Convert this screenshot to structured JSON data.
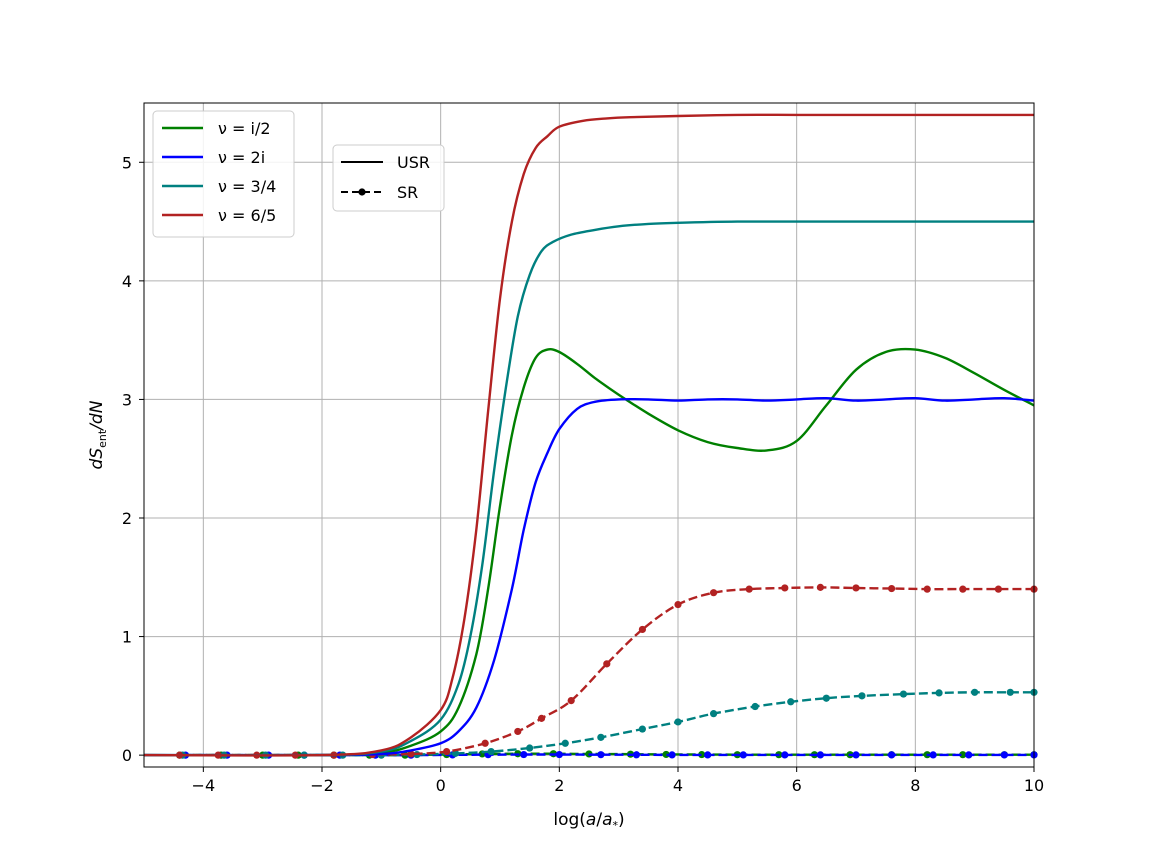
{
  "chart_data": {
    "type": "line",
    "title": "",
    "xlabel_main": "log(",
    "xlabel_var1": "a",
    "xlabel_slash": "/",
    "xlabel_var2": "a",
    "xlabel_sub": "*",
    "xlabel_close": ")",
    "ylabel_d1": "dS",
    "ylabel_sub": "ent",
    "ylabel_rest": "/dN",
    "xlim": [
      -5,
      10
    ],
    "ylim": [
      -0.1,
      5.5
    ],
    "xticks": [
      -4,
      -2,
      0,
      2,
      4,
      6,
      8,
      10
    ],
    "yticks": [
      0,
      1,
      2,
      3,
      4,
      5
    ],
    "xtick_labels": [
      "−4",
      "−2",
      "0",
      "2",
      "4",
      "6",
      "8",
      "10"
    ],
    "ytick_labels": [
      "0",
      "1",
      "2",
      "3",
      "4",
      "5"
    ],
    "grid": true,
    "legend_nu": {
      "placement": "top-left",
      "entries": [
        {
          "label": "ν = i/2",
          "color": "#008000"
        },
        {
          "label": "ν = 2i",
          "color": "#0000ff"
        },
        {
          "label": "ν = 3/4",
          "color": "#008080"
        },
        {
          "label": "ν = 6/5",
          "color": "#b22222"
        }
      ]
    },
    "legend_style": {
      "placement": "upper-left-inner",
      "entries": [
        {
          "label": "USR",
          "style": "solid"
        },
        {
          "label": "SR",
          "style": "dashed-dot"
        }
      ]
    },
    "series": [
      {
        "id": "usr-i2",
        "color": "#008000",
        "style": "solid",
        "x": [
          -5,
          -2,
          -1,
          -0.5,
          0,
          0.3,
          0.6,
          0.8,
          1.0,
          1.2,
          1.4,
          1.6,
          1.8,
          2.0,
          2.3,
          2.6,
          3.0,
          3.5,
          4.0,
          4.5,
          5.0,
          5.5,
          6.0,
          6.5,
          7.0,
          7.5,
          8.0,
          8.5,
          9.0,
          9.5,
          10.0
        ],
        "y": [
          0,
          0,
          0.02,
          0.08,
          0.2,
          0.4,
          0.85,
          1.4,
          2.1,
          2.7,
          3.1,
          3.35,
          3.42,
          3.4,
          3.3,
          3.18,
          3.04,
          2.88,
          2.74,
          2.64,
          2.59,
          2.57,
          2.65,
          2.95,
          3.25,
          3.4,
          3.42,
          3.35,
          3.22,
          3.08,
          2.95
        ]
      },
      {
        "id": "usr-2i",
        "color": "#0000ff",
        "style": "solid",
        "x": [
          -5,
          -2,
          -1,
          -0.5,
          0,
          0.3,
          0.6,
          0.9,
          1.2,
          1.4,
          1.6,
          1.8,
          2.0,
          2.3,
          2.6,
          3.0,
          3.5,
          4.0,
          4.5,
          5.0,
          5.5,
          6.0,
          6.5,
          7.0,
          7.5,
          8.0,
          8.5,
          9.0,
          9.5,
          10.0
        ],
        "y": [
          0,
          0,
          0.01,
          0.04,
          0.1,
          0.2,
          0.4,
          0.8,
          1.4,
          1.9,
          2.3,
          2.55,
          2.75,
          2.92,
          2.98,
          3.0,
          3.0,
          2.99,
          3.0,
          3.0,
          2.99,
          3.0,
          3.01,
          2.99,
          3.0,
          3.01,
          2.99,
          3.0,
          3.01,
          2.99
        ]
      },
      {
        "id": "usr-34",
        "color": "#008080",
        "style": "solid",
        "x": [
          -5,
          -2,
          -1,
          -0.5,
          0,
          0.3,
          0.5,
          0.7,
          0.9,
          1.1,
          1.3,
          1.5,
          1.7,
          1.9,
          2.2,
          2.6,
          3.0,
          3.5,
          4.0,
          5.0,
          6.0,
          7.0,
          8.0,
          9.0,
          10.0
        ],
        "y": [
          0,
          0,
          0.03,
          0.12,
          0.3,
          0.6,
          1.0,
          1.6,
          2.4,
          3.1,
          3.7,
          4.05,
          4.25,
          4.33,
          4.39,
          4.43,
          4.46,
          4.48,
          4.49,
          4.5,
          4.5,
          4.5,
          4.5,
          4.5,
          4.5
        ]
      },
      {
        "id": "usr-65",
        "color": "#b22222",
        "style": "solid",
        "x": [
          -5,
          -2,
          -1,
          -0.5,
          0,
          0.2,
          0.4,
          0.6,
          0.8,
          1.0,
          1.2,
          1.4,
          1.6,
          1.8,
          2.0,
          2.4,
          2.8,
          3.2,
          4.0,
          5.0,
          6.0,
          7.0,
          8.0,
          9.0,
          10.0
        ],
        "y": [
          0,
          0,
          0.04,
          0.15,
          0.38,
          0.65,
          1.15,
          1.9,
          2.9,
          3.85,
          4.5,
          4.9,
          5.12,
          5.22,
          5.3,
          5.35,
          5.37,
          5.38,
          5.39,
          5.4,
          5.4,
          5.4,
          5.4,
          5.4,
          5.4
        ]
      },
      {
        "id": "sr-i2",
        "color": "#008000",
        "style": "dashed",
        "x": [
          -4.4,
          -3.7,
          -3.0,
          -2.4,
          -1.8,
          -1.2,
          -0.6,
          0.1,
          0.7,
          1.3,
          1.9,
          2.5,
          3.2,
          3.8,
          4.4,
          5.0,
          5.7,
          6.3,
          6.9,
          7.6,
          8.2,
          8.8,
          9.5,
          10.0
        ],
        "y": [
          0,
          0,
          0,
          0,
          0,
          0,
          0,
          0.005,
          0.01,
          0.012,
          0.012,
          0.01,
          0.008,
          0.006,
          0.005,
          0.004,
          0.004,
          0.004,
          0.004,
          0.004,
          0.004,
          0.004,
          0.004,
          0.004
        ]
      },
      {
        "id": "sr-2i",
        "color": "#0000ff",
        "style": "dashed",
        "x": [
          -4.3,
          -3.6,
          -2.9,
          -2.3,
          -1.7,
          -1.1,
          -0.5,
          0.2,
          0.8,
          1.4,
          2.0,
          2.7,
          3.3,
          3.9,
          4.5,
          5.1,
          5.8,
          6.4,
          7.0,
          7.6,
          8.3,
          8.9,
          9.5,
          10.0
        ],
        "y": [
          0,
          0,
          0,
          0,
          0,
          0,
          0,
          0.002,
          0.004,
          0.005,
          0.005,
          0.004,
          0.003,
          0.002,
          0.002,
          0.002,
          0.002,
          0.002,
          0.002,
          0.002,
          0.002,
          0.002,
          0.002,
          0.002
        ]
      },
      {
        "id": "sr-34",
        "color": "#008080",
        "style": "dashed",
        "x": [
          -4.35,
          -3.65,
          -2.95,
          -2.3,
          -1.65,
          -1.0,
          -0.4,
          0.25,
          0.85,
          1.5,
          2.1,
          2.7,
          3.4,
          4.0,
          4.6,
          5.3,
          5.9,
          6.5,
          7.1,
          7.8,
          8.4,
          9.0,
          9.6,
          10.0
        ],
        "y": [
          0,
          0,
          0,
          0,
          0,
          0,
          0.005,
          0.015,
          0.03,
          0.06,
          0.1,
          0.15,
          0.22,
          0.28,
          0.35,
          0.41,
          0.45,
          0.48,
          0.5,
          0.515,
          0.525,
          0.53,
          0.53,
          0.53
        ]
      },
      {
        "id": "sr-65",
        "color": "#b22222",
        "style": "dashed",
        "x": [
          -4.4,
          -3.75,
          -3.1,
          -2.45,
          -1.8,
          -1.15,
          -0.5,
          0.1,
          0.75,
          1.3,
          1.7,
          2.2,
          2.8,
          3.4,
          4.0,
          4.6,
          5.2,
          5.8,
          6.4,
          7.0,
          7.6,
          8.2,
          8.8,
          9.4,
          10.0
        ],
        "y": [
          0,
          0,
          0,
          0,
          0,
          0.005,
          0.01,
          0.03,
          0.1,
          0.2,
          0.31,
          0.46,
          0.77,
          1.06,
          1.27,
          1.37,
          1.4,
          1.41,
          1.415,
          1.41,
          1.405,
          1.4,
          1.4,
          1.4,
          1.4
        ]
      }
    ]
  }
}
